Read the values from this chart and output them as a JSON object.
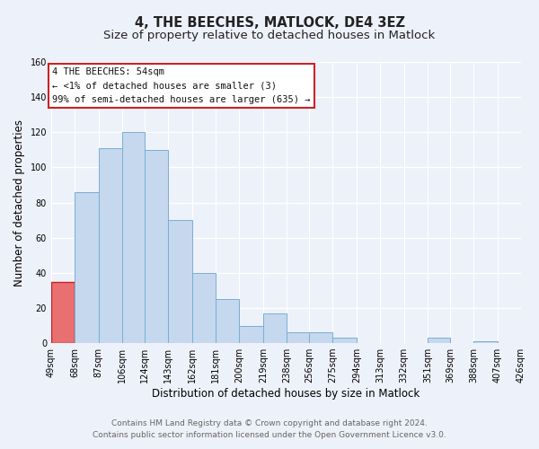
{
  "title": "4, THE BEECHES, MATLOCK, DE4 3EZ",
  "subtitle": "Size of property relative to detached houses in Matlock",
  "xlabel": "Distribution of detached houses by size in Matlock",
  "ylabel": "Number of detached properties",
  "bar_edges": [
    49,
    68,
    87,
    106,
    124,
    143,
    162,
    181,
    200,
    219,
    238,
    256,
    275,
    294,
    313,
    332,
    351,
    369,
    388,
    407,
    426
  ],
  "bar_heights": [
    35,
    86,
    111,
    120,
    110,
    70,
    40,
    25,
    10,
    17,
    6,
    6,
    3,
    0,
    0,
    0,
    3,
    0,
    1,
    0,
    0
  ],
  "tick_labels": [
    "49sqm",
    "68sqm",
    "87sqm",
    "106sqm",
    "124sqm",
    "143sqm",
    "162sqm",
    "181sqm",
    "200sqm",
    "219sqm",
    "238sqm",
    "256sqm",
    "275sqm",
    "294sqm",
    "313sqm",
    "332sqm",
    "351sqm",
    "369sqm",
    "388sqm",
    "407sqm",
    "426sqm"
  ],
  "bar_color": "#c5d8ee",
  "bar_edge_color": "#7aaed4",
  "highlight_bar_color": "#e87070",
  "highlight_bar_edge_color": "#cc2222",
  "highlight_index": 0,
  "annotation_title": "4 THE BEECHES: 54sqm",
  "annotation_line1": "← <1% of detached houses are smaller (3)",
  "annotation_line2": "99% of semi-detached houses are larger (635) →",
  "annotation_box_color": "#ffffff",
  "annotation_box_edge_color": "#cc2222",
  "ylim": [
    0,
    160
  ],
  "yticks": [
    0,
    20,
    40,
    60,
    80,
    100,
    120,
    140,
    160
  ],
  "footer_line1": "Contains HM Land Registry data © Crown copyright and database right 2024.",
  "footer_line2": "Contains public sector information licensed under the Open Government Licence v3.0.",
  "bg_color": "#edf1fa",
  "plot_bg_color": "#edf1fa",
  "grid_color": "#ffffff",
  "title_fontsize": 10.5,
  "subtitle_fontsize": 9.5,
  "axis_label_fontsize": 8.5,
  "tick_fontsize": 7,
  "footer_fontsize": 6.5,
  "annotation_fontsize": 7.5
}
